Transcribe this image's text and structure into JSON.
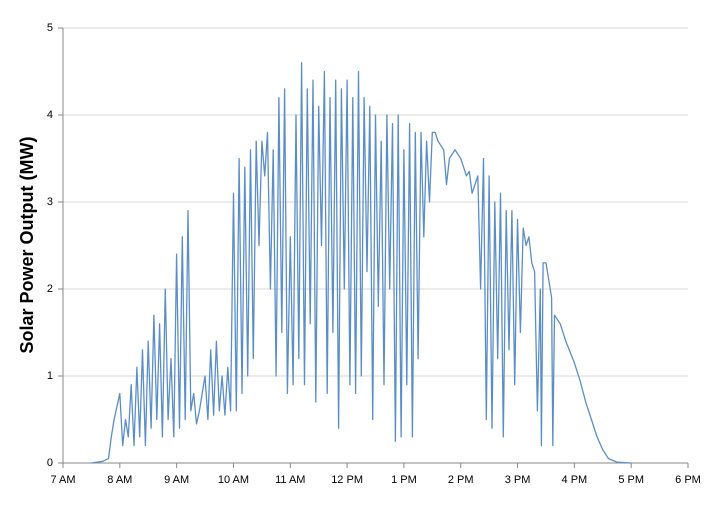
{
  "chart_data": {
    "type": "line",
    "ylabel": "Solar Power Output (MW)",
    "x": [
      7.5,
      7.7,
      7.8,
      7.85,
      7.9,
      7.95,
      8.0,
      8.05,
      8.1,
      8.15,
      8.2,
      8.25,
      8.3,
      8.35,
      8.4,
      8.45,
      8.5,
      8.55,
      8.6,
      8.65,
      8.7,
      8.75,
      8.8,
      8.85,
      8.9,
      8.95,
      9.0,
      9.05,
      9.1,
      9.15,
      9.2,
      9.25,
      9.3,
      9.35,
      9.4,
      9.5,
      9.55,
      9.6,
      9.65,
      9.7,
      9.75,
      9.8,
      9.85,
      9.9,
      9.95,
      10.0,
      10.05,
      10.1,
      10.15,
      10.2,
      10.25,
      10.3,
      10.35,
      10.4,
      10.45,
      10.5,
      10.55,
      10.6,
      10.65,
      10.7,
      10.75,
      10.8,
      10.85,
      10.9,
      10.95,
      11.0,
      11.05,
      11.1,
      11.15,
      11.2,
      11.25,
      11.3,
      11.35,
      11.4,
      11.45,
      11.5,
      11.55,
      11.6,
      11.65,
      11.7,
      11.75,
      11.8,
      11.85,
      11.9,
      11.95,
      12.0,
      12.05,
      12.1,
      12.15,
      12.2,
      12.25,
      12.3,
      12.35,
      12.4,
      12.45,
      12.5,
      12.55,
      12.6,
      12.65,
      12.7,
      12.75,
      12.8,
      12.85,
      12.9,
      12.95,
      13.0,
      13.05,
      13.1,
      13.15,
      13.2,
      13.25,
      13.3,
      13.35,
      13.4,
      13.45,
      13.5,
      13.55,
      13.6,
      13.7,
      13.75,
      13.8,
      13.9,
      14.0,
      14.05,
      14.1,
      14.15,
      14.2,
      14.3,
      14.35,
      14.4,
      14.45,
      14.5,
      14.55,
      14.6,
      14.65,
      14.7,
      14.75,
      14.8,
      14.85,
      14.9,
      14.95,
      15.0,
      15.05,
      15.1,
      15.15,
      15.2,
      15.25,
      15.3,
      15.35,
      15.4,
      15.42,
      15.45,
      15.5,
      15.55,
      15.6,
      15.62,
      15.65,
      15.75,
      15.85,
      16.0,
      16.1,
      16.2,
      16.3,
      16.4,
      16.5,
      16.6,
      16.75,
      17.0
    ],
    "series": [
      {
        "name": "Solar Power Output",
        "color": "#5b8ec7",
        "values": [
          0,
          0.02,
          0.05,
          0.3,
          0.5,
          0.65,
          0.8,
          0.2,
          0.5,
          0.3,
          0.9,
          0.2,
          1.1,
          0.3,
          1.3,
          0.2,
          1.4,
          0.4,
          1.7,
          0.5,
          1.6,
          0.3,
          2.0,
          0.5,
          1.2,
          0.3,
          2.4,
          0.4,
          2.6,
          0.5,
          2.9,
          0.6,
          0.8,
          0.45,
          0.6,
          1.0,
          0.5,
          1.3,
          0.55,
          1.4,
          0.6,
          1.0,
          0.55,
          1.1,
          0.6,
          3.1,
          0.6,
          3.5,
          0.8,
          3.4,
          1.0,
          3.6,
          1.2,
          3.7,
          2.5,
          3.7,
          3.3,
          3.8,
          2.0,
          3.6,
          1.0,
          4.2,
          1.5,
          4.3,
          0.8,
          2.6,
          0.9,
          4.0,
          1.2,
          4.6,
          0.9,
          4.3,
          1.6,
          4.4,
          0.7,
          4.1,
          2.5,
          4.5,
          0.8,
          4.2,
          1.5,
          4.4,
          0.4,
          4.3,
          2.0,
          4.4,
          0.9,
          4.2,
          0.8,
          4.5,
          1.0,
          4.2,
          2.2,
          4.1,
          0.5,
          4.0,
          1.8,
          3.7,
          0.9,
          4.0,
          2.0,
          3.9,
          0.25,
          4.0,
          0.3,
          3.6,
          0.9,
          3.9,
          0.3,
          3.8,
          1.2,
          3.8,
          2.6,
          3.7,
          3.0,
          3.8,
          3.8,
          3.7,
          3.6,
          3.2,
          3.5,
          3.6,
          3.5,
          3.4,
          3.3,
          3.35,
          3.1,
          3.3,
          2.0,
          3.5,
          0.5,
          3.3,
          0.4,
          3.0,
          1.2,
          3.1,
          0.3,
          2.9,
          1.3,
          2.9,
          0.9,
          2.8,
          1.5,
          2.7,
          2.5,
          2.6,
          2.3,
          2.2,
          0.6,
          2.0,
          0.2,
          2.3,
          2.3,
          2.1,
          1.9,
          0.2,
          1.7,
          1.6,
          1.4,
          1.15,
          0.95,
          0.7,
          0.5,
          0.3,
          0.15,
          0.05,
          0.01,
          0
        ]
      }
    ],
    "xlim": [
      7,
      18
    ],
    "xticks": [
      {
        "value": 7,
        "label": "7 AM"
      },
      {
        "value": 8,
        "label": "8 AM"
      },
      {
        "value": 9,
        "label": "9 AM"
      },
      {
        "value": 10,
        "label": "10 AM"
      },
      {
        "value": 11,
        "label": "11 AM"
      },
      {
        "value": 12,
        "label": "12 PM"
      },
      {
        "value": 13,
        "label": "1 PM"
      },
      {
        "value": 14,
        "label": "2 PM"
      },
      {
        "value": 15,
        "label": "3 PM"
      },
      {
        "value": 16,
        "label": "4 PM"
      },
      {
        "value": 17,
        "label": "5 PM"
      },
      {
        "value": 18,
        "label": "6 PM"
      }
    ],
    "ylim": [
      0,
      5
    ],
    "yticks": [
      0,
      1,
      2,
      3,
      4,
      5
    ],
    "grid": true
  }
}
